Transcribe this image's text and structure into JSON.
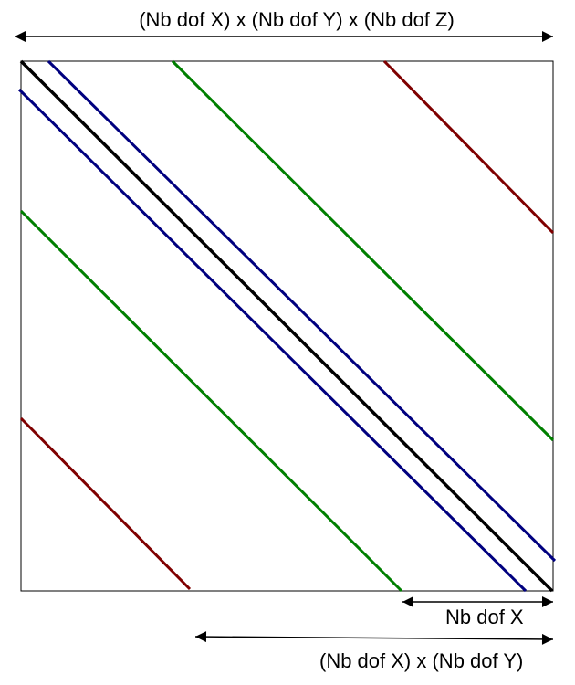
{
  "labels": {
    "total_size": "(Nb dof X) x (Nb dof Y) x (Nb dof Z)",
    "x_offset": "Nb dof X",
    "xy_offset": "(Nb dof X) x (Nb dof Y)"
  },
  "colors": {
    "main_diagonal": "#000000",
    "x_neighbors": "#00007f",
    "y_neighbors": "#007f00",
    "z_neighbors": "#7f0000",
    "frame": "#000000",
    "arrows": "#000000"
  }
}
